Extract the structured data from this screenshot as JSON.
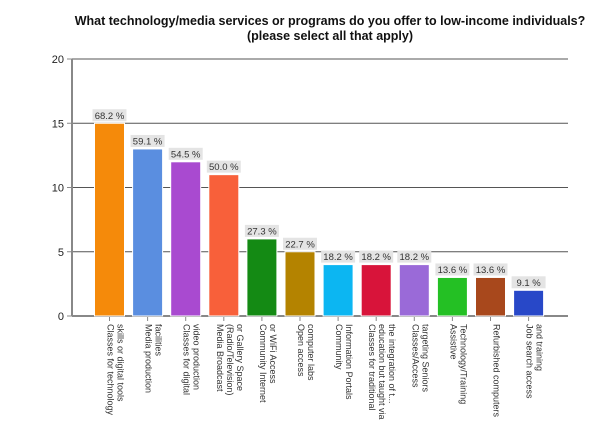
{
  "chart_data": {
    "type": "bar",
    "title": [
      "What technology/media services or programs do you offer to low-income individuals?",
      "(please select all that apply)"
    ],
    "xlabel": "",
    "ylabel": "",
    "ylim": [
      0,
      20
    ],
    "yticks": [
      0,
      5,
      10,
      15,
      20
    ],
    "grid": true,
    "categories": [
      [
        "Classes for technology",
        "skills or digital tools"
      ],
      [
        "Media production",
        "facilities"
      ],
      [
        "Classes for digital",
        "video production"
      ],
      [
        "Media Broadcast",
        "(Radio/Television)",
        "or Gallery Space"
      ],
      [
        "Community Internet",
        "or WiFi Access"
      ],
      [
        "Open access",
        "computer labs"
      ],
      [
        "Community",
        "Information Portals"
      ],
      [
        "Classes for traditional",
        "education but taught via",
        "the integration of t..."
      ],
      [
        "Classes/Access",
        "targeting Seniors"
      ],
      [
        "Assistive",
        "Technology/Training"
      ],
      [
        "Refurbished computers"
      ],
      [
        "Job search access",
        "and training"
      ]
    ],
    "values": [
      15,
      13,
      12,
      11,
      6,
      5,
      4,
      4,
      4,
      3,
      3,
      2
    ],
    "data_labels": [
      "68.2 %",
      "59.1 %",
      "54.5 %",
      "50.0 %",
      "27.3 %",
      "22.7 %",
      "18.2 %",
      "18.2 %",
      "18.2 %",
      "13.6 %",
      "13.6 %",
      "9.1 %"
    ],
    "colors": [
      "#f58a0a",
      "#5a8ee0",
      "#a94ad0",
      "#f8603a",
      "#148a14",
      "#b48300",
      "#0cb6f2",
      "#d8143a",
      "#9a6ad8",
      "#24c024",
      "#a8481c",
      "#2848c8"
    ]
  }
}
